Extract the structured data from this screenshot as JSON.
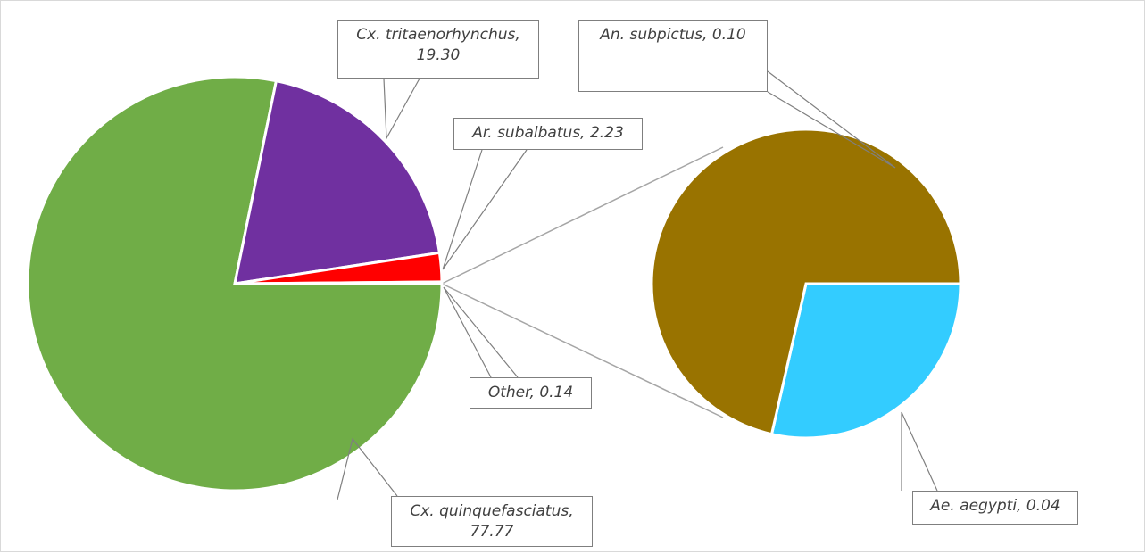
{
  "chart_data": [
    {
      "type": "pie",
      "labels": [
        "Cx. quinquefasciatus, 77.77",
        "Cx. tritaenorhynchus, 19.30",
        "Ar. subalbatus, 2.23",
        "Other, 0.14"
      ],
      "values": [
        77.77,
        19.3,
        2.23,
        0.14
      ],
      "colors": [
        "#70ad47",
        "#7030a0",
        "#ff0000",
        "#a5a5a5"
      ]
    },
    {
      "type": "pie",
      "labels": [
        "Ae. aegypti, 0.04",
        "An. subpictus, 0.10"
      ],
      "values": [
        0.04,
        0.1
      ],
      "colors": [
        "#33ccff",
        "#997300"
      ]
    }
  ]
}
